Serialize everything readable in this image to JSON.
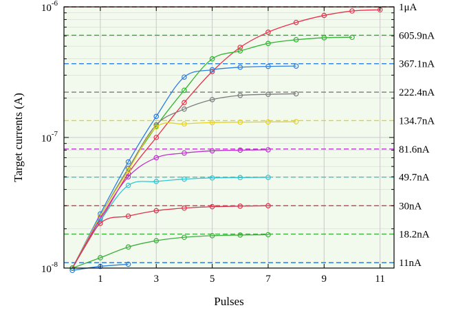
{
  "chart_data": {
    "type": "line",
    "title": "",
    "xlabel": "Pulses",
    "ylabel": "Target currents (A)",
    "x_scale": "linear",
    "y_scale": "log",
    "xlim": [
      -0.3,
      11.5
    ],
    "ylim": [
      1e-08,
      1e-06
    ],
    "x_ticks": [
      1,
      3,
      5,
      7,
      9,
      11
    ],
    "x_tick_labels": [
      "1",
      "3",
      "5",
      "7",
      "9",
      "11"
    ],
    "y_ticks": [
      {
        "value": 1e-08,
        "base": "10",
        "exp": "-8"
      },
      {
        "value": 1e-07,
        "base": "10",
        "exp": "-7"
      },
      {
        "value": 1e-06,
        "base": "10",
        "exp": "-6"
      }
    ],
    "plot_background": "#f2faee",
    "grid": true,
    "grid_color": "#c9c9c9",
    "series": [
      {
        "target_value": 1e-06,
        "target_label": "1μA",
        "color": "#e8304a",
        "x": [
          0,
          1,
          2,
          3,
          4,
          5,
          6,
          7,
          8,
          9,
          10,
          11
        ],
        "y": [
          1e-08,
          2.3e-08,
          5.3e-08,
          1e-07,
          1.85e-07,
          3.2e-07,
          4.9e-07,
          6.4e-07,
          7.6e-07,
          8.6e-07,
          9.3e-07,
          9.5e-07
        ]
      },
      {
        "target_value": 6.059e-07,
        "target_label": "605.9nA",
        "color": "#2fb42f",
        "x": [
          0,
          1,
          2,
          3,
          4,
          5,
          6,
          7,
          8,
          9,
          10
        ],
        "y": [
          1e-08,
          2.5e-08,
          5.8e-08,
          1.22e-07,
          2.3e-07,
          4e-07,
          4.6e-07,
          5.25e-07,
          5.6e-07,
          5.8e-07,
          5.85e-07
        ]
      },
      {
        "target_value": 3.671e-07,
        "target_label": "367.1nA",
        "color": "#2c7de0",
        "x": [
          0,
          1,
          2,
          3,
          4,
          5,
          6,
          7,
          8
        ],
        "y": [
          1e-08,
          2.6e-08,
          6.5e-08,
          1.45e-07,
          2.9e-07,
          3.3e-07,
          3.45e-07,
          3.5e-07,
          3.52e-07
        ]
      },
      {
        "target_value": 2.224e-07,
        "target_label": "222.4nA",
        "color": "#7b7b7b",
        "x": [
          0,
          1,
          2,
          3,
          4,
          5,
          6,
          7,
          8
        ],
        "y": [
          1e-08,
          2.5e-08,
          5.8e-08,
          1.25e-07,
          1.65e-07,
          1.95e-07,
          2.1e-07,
          2.14e-07,
          2.16e-07
        ]
      },
      {
        "target_value": 1.347e-07,
        "target_label": "134.7nA",
        "color": "#e6d21e",
        "x": [
          0,
          1,
          2,
          3,
          4,
          5,
          6,
          7,
          8
        ],
        "y": [
          1e-08,
          2.5e-08,
          5.6e-08,
          1.2e-07,
          1.27e-07,
          1.3e-07,
          1.31e-07,
          1.315e-07,
          1.32e-07
        ]
      },
      {
        "target_value": 8.16e-08,
        "target_label": "81.6nA",
        "color": "#c030d0",
        "x": [
          0,
          1,
          2,
          3,
          4,
          5,
          6,
          7
        ],
        "y": [
          1e-08,
          2.4e-08,
          5e-08,
          7e-08,
          7.6e-08,
          7.9e-08,
          8e-08,
          8.05e-08
        ]
      },
      {
        "target_value": 4.97e-08,
        "target_label": "49.7nA",
        "color": "#30c6d4",
        "x": [
          0,
          1,
          2,
          3,
          4,
          5,
          6,
          7
        ],
        "y": [
          1e-08,
          2.3e-08,
          4.3e-08,
          4.6e-08,
          4.8e-08,
          4.9e-08,
          4.93e-08,
          4.95e-08
        ]
      },
      {
        "target_value": 3e-08,
        "target_label": "30nA",
        "color": "#e0304a",
        "x": [
          0,
          1,
          2,
          3,
          4,
          5,
          6,
          7
        ],
        "y": [
          1e-08,
          2.2e-08,
          2.5e-08,
          2.75e-08,
          2.88e-08,
          2.95e-08,
          2.98e-08,
          3e-08
        ]
      },
      {
        "target_value": 1.82e-08,
        "target_label": "18.2nA",
        "color": "#3cae3c",
        "x": [
          0,
          1,
          2,
          3,
          4,
          5,
          6,
          7
        ],
        "y": [
          1e-08,
          1.2e-08,
          1.45e-08,
          1.62e-08,
          1.72e-08,
          1.77e-08,
          1.79e-08,
          1.8e-08
        ]
      },
      {
        "target_value": 1.1e-08,
        "target_label": "11nA",
        "color": "#2c7de0",
        "x": [
          0,
          1,
          2
        ],
        "y": [
          9.6e-09,
          1.03e-08,
          1.07e-08
        ]
      }
    ]
  }
}
